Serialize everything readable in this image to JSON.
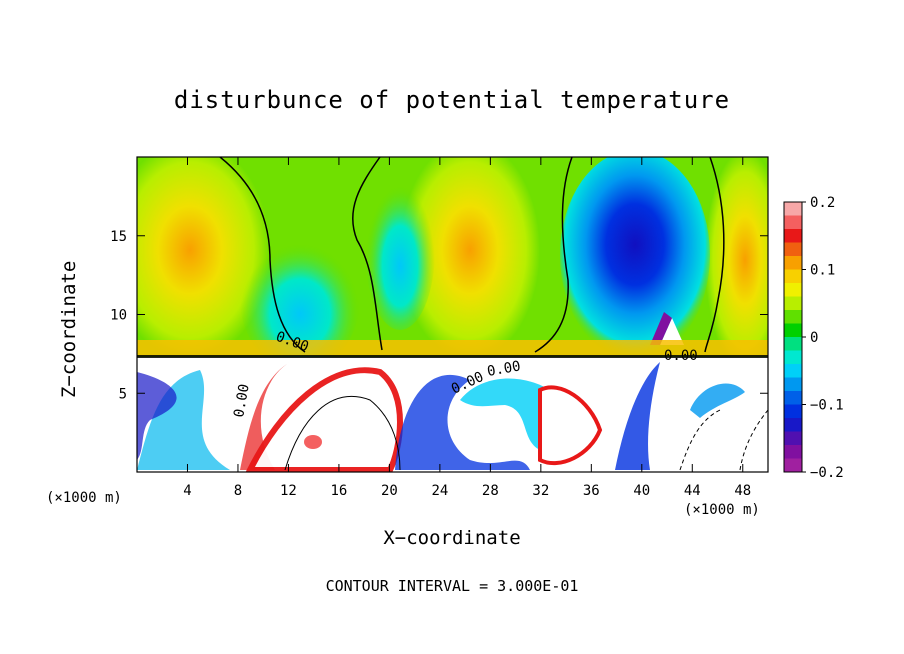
{
  "chart_data": {
    "type": "heatmap",
    "title": "disturbunce of potential temperature",
    "xlabel": "X−coordinate",
    "ylabel": "Z−coordinate",
    "x_unit": "(×1000 m)",
    "xlim": [
      0,
      50
    ],
    "ylim": [
      0,
      20
    ],
    "x_ticks": [
      4,
      8,
      12,
      16,
      20,
      24,
      28,
      32,
      36,
      40,
      44,
      48
    ],
    "y_ticks": [
      5,
      10,
      15
    ],
    "colorbar": {
      "range": [
        -0.2,
        0.2
      ],
      "tick_labels": [
        "0.2",
        "0.1",
        "0",
        "−0.1",
        "−0.2"
      ],
      "tick_values": [
        0.2,
        0.1,
        0,
        -0.1,
        -0.2
      ],
      "colors": [
        "#f7a8a8",
        "#f46060",
        "#e81818",
        "#f06010",
        "#f8a000",
        "#f8d000",
        "#f0f000",
        "#b8ee00",
        "#60e000",
        "#00d000",
        "#00e080",
        "#00e8d0",
        "#00d0f8",
        "#0098f0",
        "#0060e8",
        "#0030e0",
        "#1818c8",
        "#5010b0",
        "#8010a0",
        "#a020a0"
      ]
    },
    "contour_labels": [
      "0.00",
      "0.00",
      "0.00",
      "0.00",
      "0.00"
    ],
    "contour_interval_text": "CONTOUR INTERVAL =  3.000E-01"
  }
}
